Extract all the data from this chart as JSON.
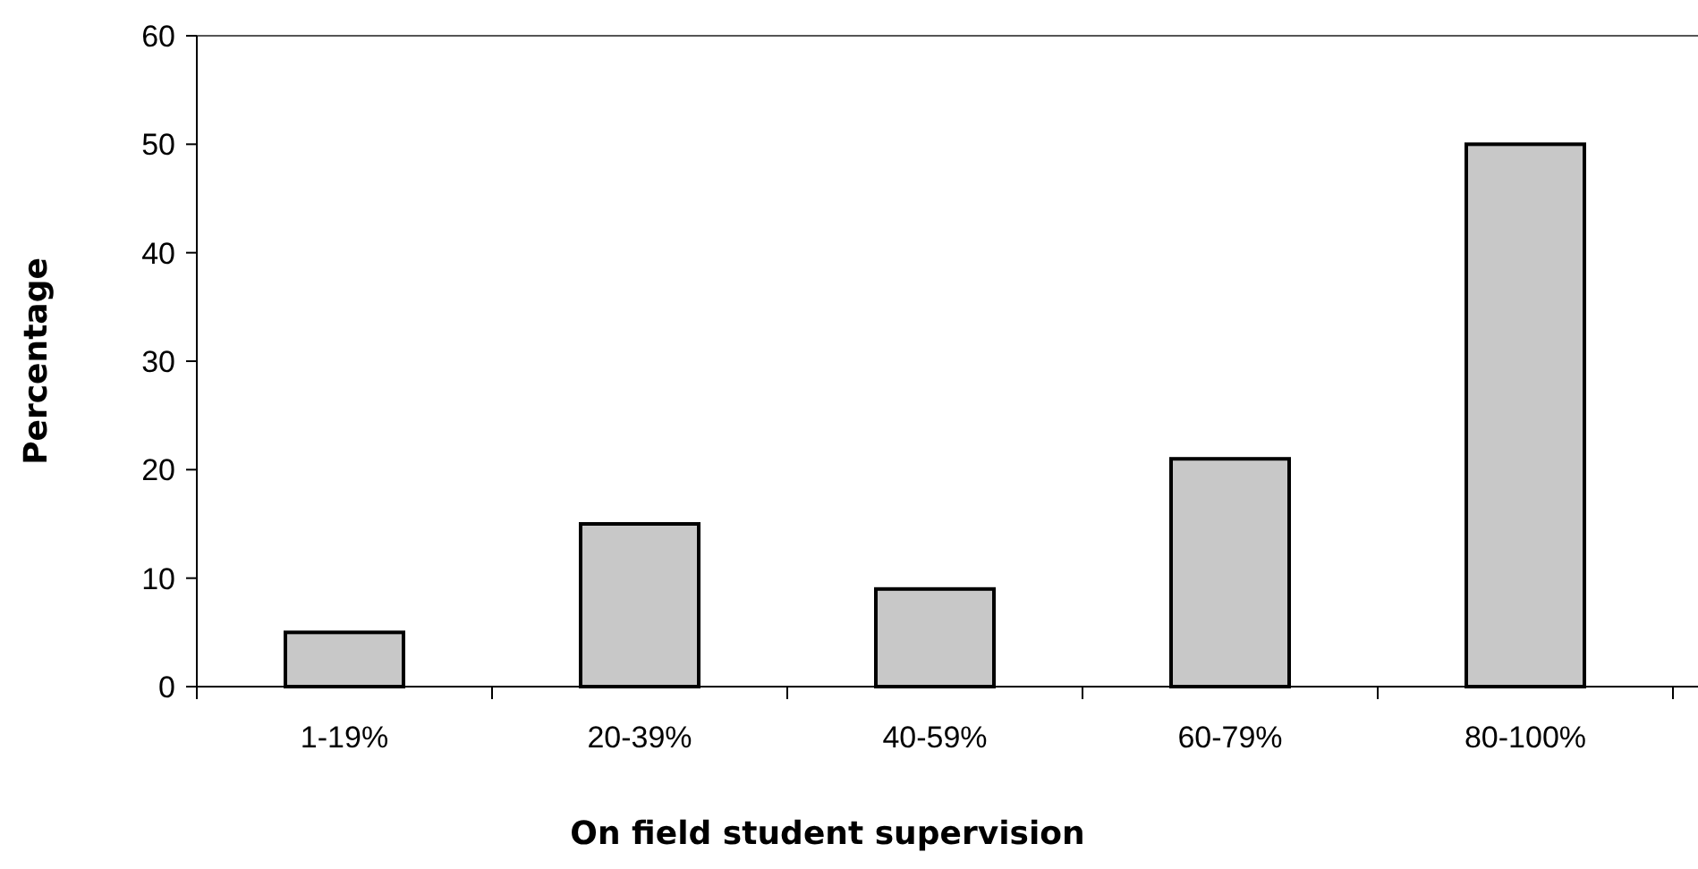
{
  "chart_data": {
    "type": "bar",
    "xlabel": "On field student supervision",
    "ylabel": "Percentage",
    "categories": [
      "1-19%",
      "20-39%",
      "40-59%",
      "60-79%",
      "80-100%"
    ],
    "values": [
      5,
      15,
      9,
      21,
      50
    ],
    "color": "#c8c8c8",
    "ylim": [
      0,
      60
    ],
    "yticks": [
      0,
      10,
      20,
      30,
      40,
      50,
      60
    ],
    "grid": false
  }
}
